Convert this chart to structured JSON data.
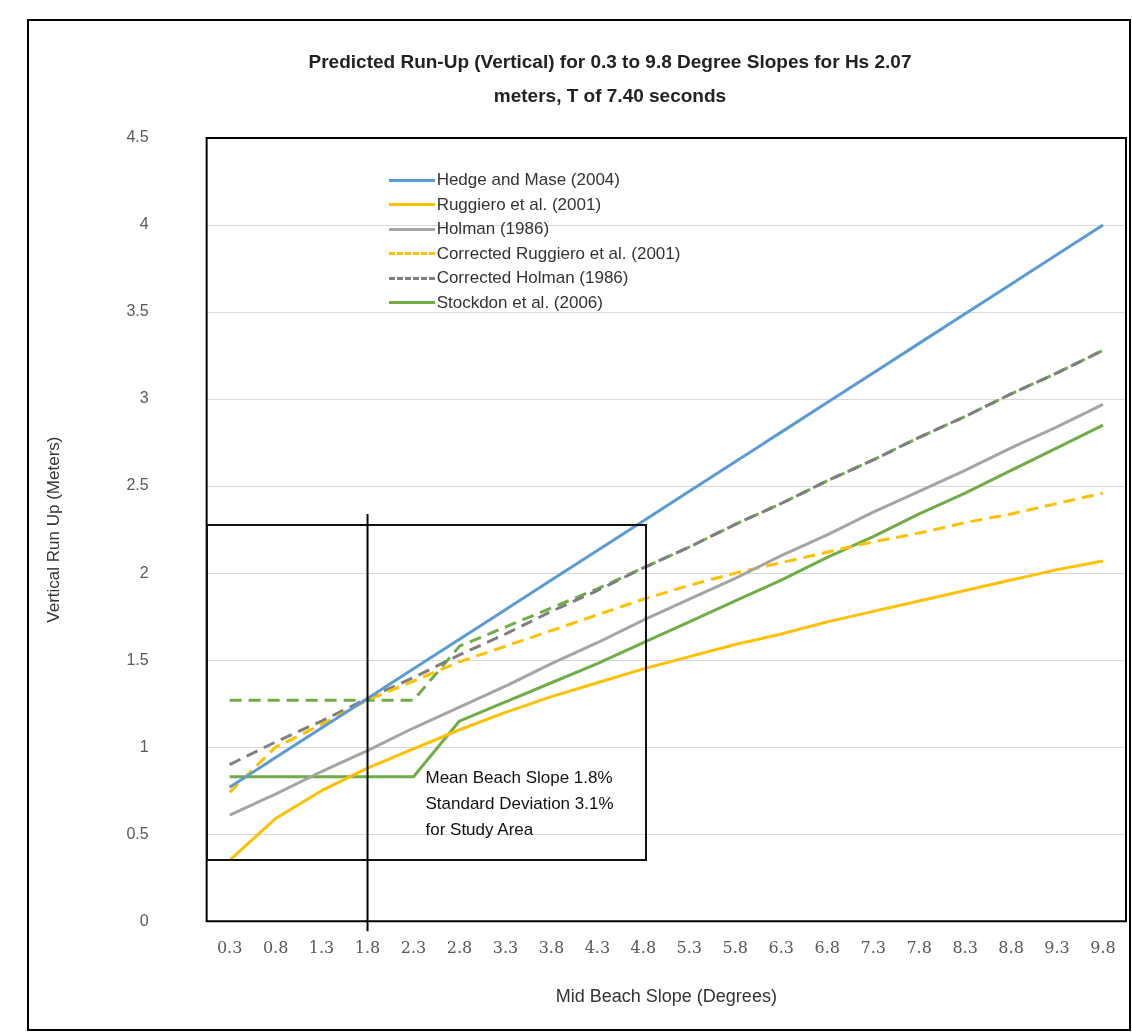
{
  "chart_data": {
    "type": "line",
    "title": "Predicted Run-Up (Vertical) for 0.3 to 9.8 Degree Slopes for Hs 2.07 meters, T of 7.40 seconds",
    "xlabel": "Mid Beach Slope (Degrees)",
    "ylabel": "Vertical Run Up (Meters)",
    "categories": [
      "0.3",
      "0.8",
      "1.3",
      "1.8",
      "2.3",
      "2.8",
      "3.3",
      "3.8",
      "4.3",
      "4.8",
      "5.3",
      "5.8",
      "6.3",
      "6.8",
      "7.3",
      "7.8",
      "8.3",
      "8.8",
      "9.3",
      "9.8"
    ],
    "series": [
      {
        "name": "Hedge and Mase (2004)",
        "color": "#5b9bd5",
        "line_style": "solid",
        "values": [
          0.77,
          0.94,
          1.11,
          1.28,
          1.45,
          1.62,
          1.79,
          1.96,
          2.13,
          2.3,
          2.47,
          2.64,
          2.81,
          2.98,
          3.15,
          3.32,
          3.49,
          3.66,
          3.83,
          4.0
        ]
      },
      {
        "name": "Ruggiero et al. (2001)",
        "color": "#ffc000",
        "line_style": "solid",
        "values": [
          0.35,
          0.59,
          0.75,
          0.88,
          0.99,
          1.1,
          1.2,
          1.29,
          1.37,
          1.45,
          1.52,
          1.59,
          1.65,
          1.72,
          1.78,
          1.84,
          1.9,
          1.96,
          2.02,
          2.07
        ]
      },
      {
        "name": "Holman (1986)",
        "color": "#a5a5a5",
        "line_style": "solid",
        "values": [
          0.61,
          0.73,
          0.86,
          0.98,
          1.11,
          1.23,
          1.35,
          1.48,
          1.6,
          1.73,
          1.85,
          1.97,
          2.1,
          2.22,
          2.35,
          2.47,
          2.59,
          2.72,
          2.84,
          2.97
        ]
      },
      {
        "name": "Corrected Ruggiero et al. (2001)",
        "color": "#ffc000",
        "line_style": "dashed",
        "values": [
          0.74,
          1.0,
          1.13,
          1.27,
          1.38,
          1.49,
          1.58,
          1.67,
          1.76,
          1.85,
          1.93,
          2.0,
          2.06,
          2.12,
          2.18,
          2.23,
          2.29,
          2.34,
          2.4,
          2.46
        ]
      },
      {
        "name": "Corrected Holman (1986)",
        "color": "#7f7f7f",
        "line_style": "dashed",
        "values": [
          0.9,
          1.03,
          1.15,
          1.28,
          1.4,
          1.53,
          1.65,
          1.78,
          1.9,
          2.03,
          2.15,
          2.28,
          2.4,
          2.53,
          2.65,
          2.78,
          2.9,
          3.03,
          3.15,
          3.28
        ]
      },
      {
        "name": "Stockdon et al. (2006)",
        "color": "#70ad47",
        "line_style": "solid",
        "values": [
          0.83,
          0.83,
          0.83,
          0.83,
          0.83,
          1.15,
          1.26,
          1.37,
          1.48,
          1.6,
          1.72,
          1.84,
          1.96,
          2.09,
          2.21,
          2.34,
          2.46,
          2.59,
          2.72,
          2.85
        ]
      },
      {
        "color": "#70ad47",
        "line_style": "dashed",
        "values": [
          1.27,
          1.27,
          1.27,
          1.27,
          1.27,
          1.58,
          1.69,
          1.8,
          1.91,
          2.03,
          2.15,
          2.28,
          2.4,
          2.53,
          2.65,
          2.78,
          2.9,
          3.03,
          3.15,
          3.28
        ]
      }
    ],
    "ylim": [
      0,
      4.5
    ],
    "yticks": [
      0,
      0.5,
      1,
      1.5,
      2,
      2.5,
      3,
      3.5,
      4,
      4.5
    ],
    "grid": "y",
    "legend": "top left",
    "marker": "none",
    "ref_lines": [
      {
        "axis": "x",
        "value": "1.8",
        "label": null,
        "color": "#000000"
      }
    ],
    "annotations": [
      "Mean Beach Slope 1.8%",
      "Standard Deviation 3.1%",
      "for Study Area"
    ]
  }
}
